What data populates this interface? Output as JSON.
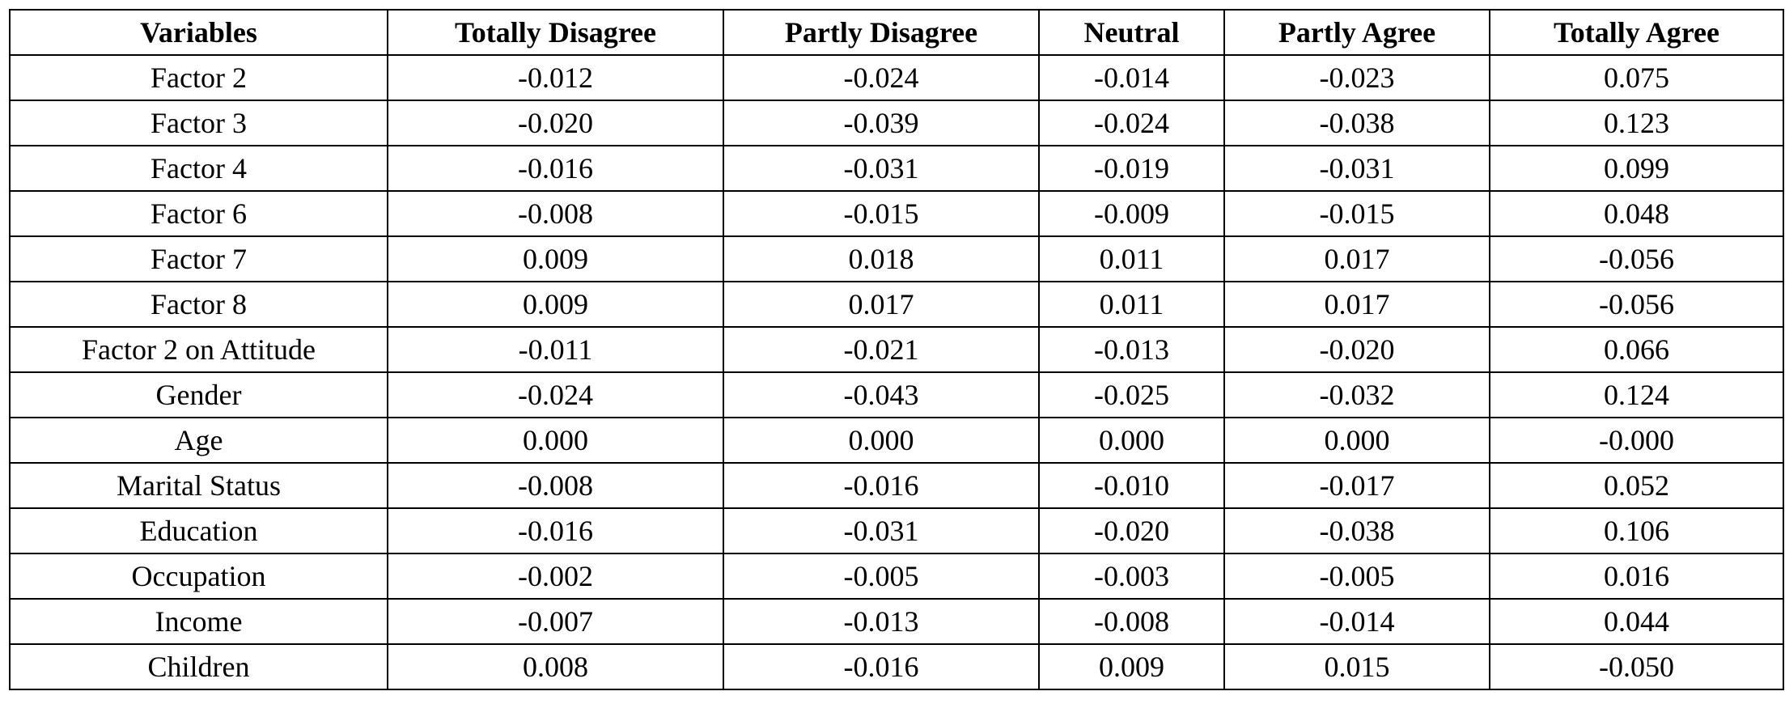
{
  "table": {
    "header": [
      "Variables",
      "Totally Disagree",
      "Partly Disagree",
      "Neutral",
      "Partly Agree",
      "Totally Agree"
    ],
    "rows": [
      [
        "Factor 2",
        "-0.012",
        "-0.024",
        "-0.014",
        "-0.023",
        "0.075"
      ],
      [
        "Factor 3",
        "-0.020",
        "-0.039",
        "-0.024",
        "-0.038",
        "0.123"
      ],
      [
        "Factor 4",
        "-0.016",
        "-0.031",
        "-0.019",
        "-0.031",
        "0.099"
      ],
      [
        "Factor 6",
        "-0.008",
        "-0.015",
        "-0.009",
        "-0.015",
        "0.048"
      ],
      [
        "Factor 7",
        "0.009",
        "0.018",
        "0.011",
        "0.017",
        "-0.056"
      ],
      [
        "Factor 8",
        "0.009",
        "0.017",
        "0.011",
        "0.017",
        "-0.056"
      ],
      [
        "Factor 2 on Attitude",
        "-0.011",
        "-0.021",
        "-0.013",
        "-0.020",
        "0.066"
      ],
      [
        "Gender",
        "-0.024",
        "-0.043",
        "-0.025",
        "-0.032",
        "0.124"
      ],
      [
        "Age",
        "0.000",
        "0.000",
        "0.000",
        "0.000",
        "-0.000"
      ],
      [
        "Marital Status",
        "-0.008",
        "-0.016",
        "-0.010",
        "-0.017",
        "0.052"
      ],
      [
        "Education",
        "-0.016",
        "-0.031",
        "-0.020",
        "-0.038",
        "0.106"
      ],
      [
        "Occupation",
        "-0.002",
        "-0.005",
        "-0.003",
        "-0.005",
        "0.016"
      ],
      [
        "Income",
        "-0.007",
        "-0.013",
        "-0.008",
        "-0.014",
        "0.044"
      ],
      [
        "Children",
        "0.008",
        "-0.016",
        "0.009",
        "0.015",
        "-0.050"
      ]
    ]
  }
}
